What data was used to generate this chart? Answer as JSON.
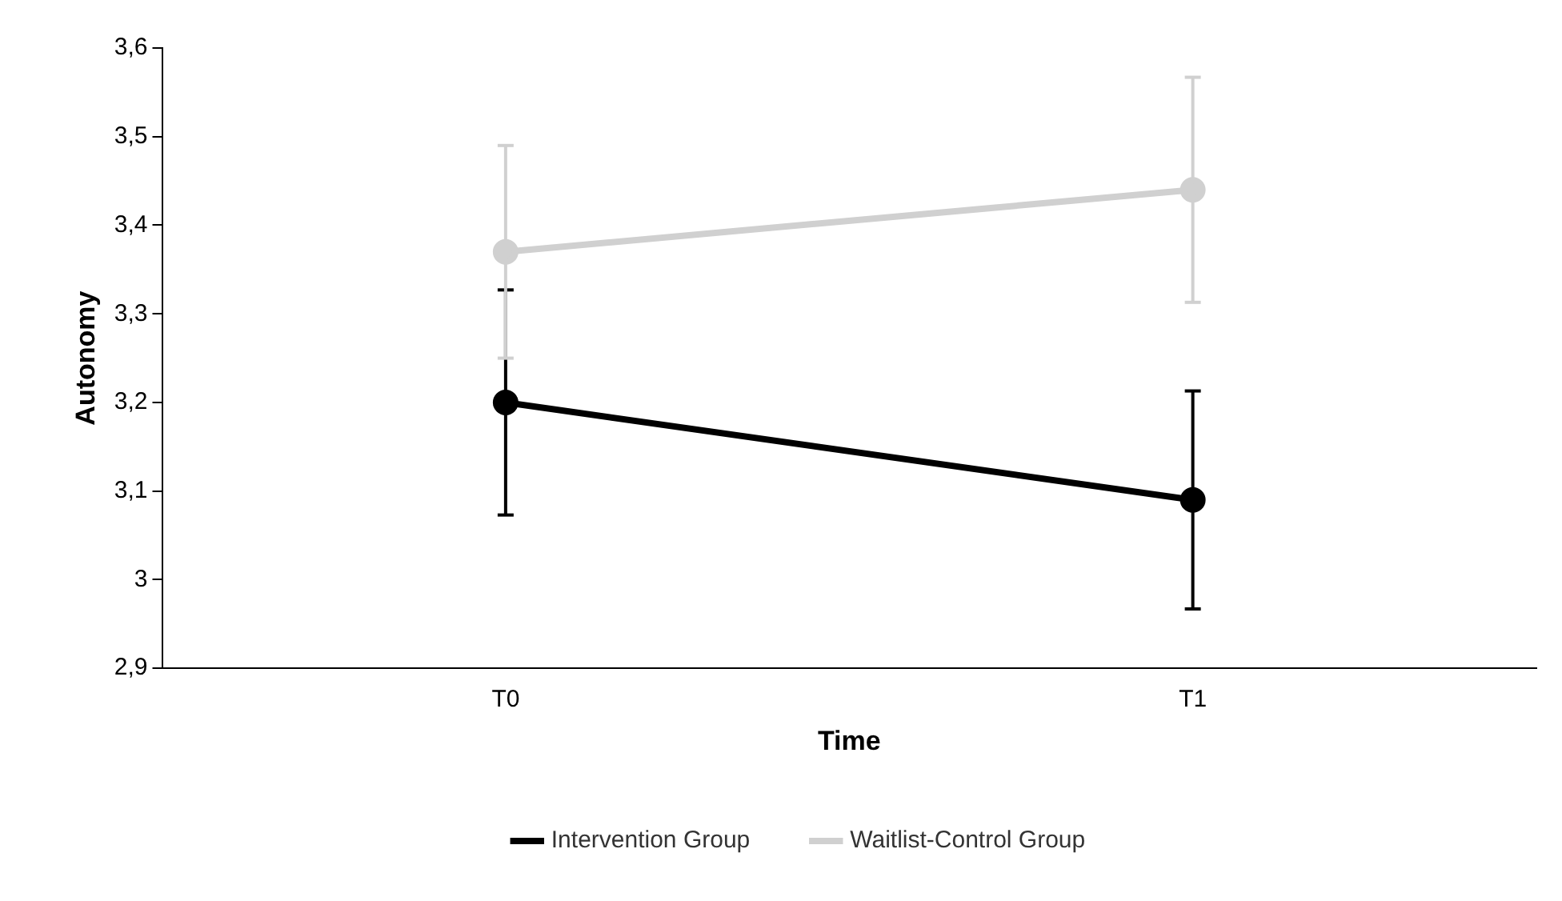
{
  "chart_data": {
    "type": "line",
    "xlabel": "Time",
    "ylabel": "Autonomy",
    "categories": [
      "T0",
      "T1"
    ],
    "series": [
      {
        "name": "Intervention Group",
        "color": "#000000",
        "values": [
          3.2,
          3.09
        ],
        "errors": [
          0.127,
          0.123
        ]
      },
      {
        "name": "Waitlist-Control Group",
        "color": "#d0d0d0",
        "values": [
          3.37,
          3.44
        ],
        "errors": [
          0.12,
          0.127
        ]
      }
    ],
    "ylim": [
      2.9,
      3.6
    ],
    "yticks": [
      {
        "value": 2.9,
        "label": "2,9"
      },
      {
        "value": 3,
        "label": "3"
      },
      {
        "value": 3.1,
        "label": "3,1"
      },
      {
        "value": 3.2,
        "label": "3,2"
      },
      {
        "value": 3.3,
        "label": "3,3"
      },
      {
        "value": 3.4,
        "label": "3,4"
      },
      {
        "value": 3.5,
        "label": "3,5"
      },
      {
        "value": 3.6,
        "label": "3,6"
      }
    ],
    "grid": false,
    "legend": "bottom",
    "marker": "circle",
    "line_style": "solid"
  }
}
